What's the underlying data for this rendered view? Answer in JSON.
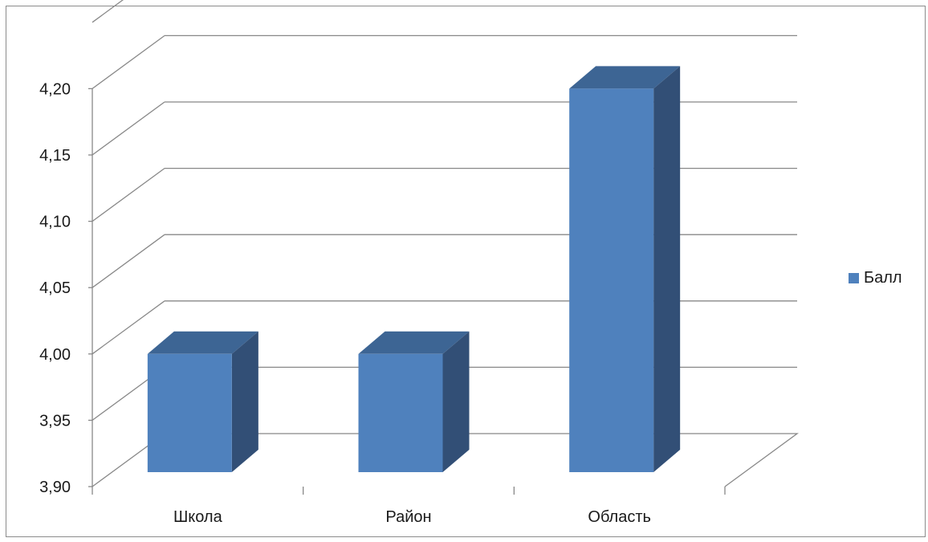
{
  "chart_data": {
    "type": "bar",
    "categories": [
      "Школа",
      "Район",
      "Область"
    ],
    "series": [
      {
        "name": "Балл",
        "values": [
          4.0,
          4.0,
          4.2
        ],
        "color": "#4f81bd"
      }
    ],
    "ylim": [
      3.9,
      4.25
    ],
    "yticks": [
      3.9,
      3.95,
      4.0,
      4.05,
      4.1,
      4.15,
      4.2
    ],
    "ytick_labels": [
      "3,90",
      "3,95",
      "4,00",
      "4,05",
      "4,10",
      "4,15",
      "4,20"
    ],
    "grid": true,
    "legend_position": "right",
    "style": "3d-column",
    "colors": {
      "front": "#4f81bd",
      "top": "#3d6594",
      "side": "#324f76",
      "grid": "#888888"
    }
  }
}
